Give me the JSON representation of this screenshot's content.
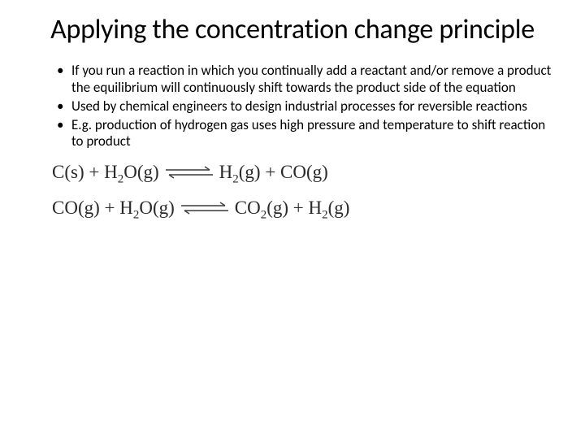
{
  "title": "Applying the concentration change principle",
  "title_fontsize": 34,
  "title_color": "#000000",
  "bullets": [
    "If you run a reaction in which you continually add a reactant and/or remove a product the equilibrium will continuously shift towards the product side of the equation",
    "Used by chemical engineers to design industrial processes for reversible reactions",
    "E.g. production of hydrogen gas uses high pressure and temperature to shift reaction to product"
  ],
  "bullet_fontsize": 17,
  "bullet_color": "#000000",
  "equations": [
    {
      "left": [
        {
          "txt": "C(s)"
        },
        {
          "txt": " + "
        },
        {
          "txt": "H",
          "sub": "2"
        },
        {
          "txt": "O(g)"
        }
      ],
      "right": [
        {
          "txt": "H",
          "sub": "2"
        },
        {
          "txt": "(g)"
        },
        {
          "txt": " + "
        },
        {
          "txt": "CO(g)"
        }
      ]
    },
    {
      "left": [
        {
          "txt": "CO(g)"
        },
        {
          "txt": " + "
        },
        {
          "txt": "H",
          "sub": "2"
        },
        {
          "txt": "O(g)"
        }
      ],
      "right": [
        {
          "txt": "CO",
          "sub": "2"
        },
        {
          "txt": "(g)"
        },
        {
          "txt": " + "
        },
        {
          "txt": "H",
          "sub": "2"
        },
        {
          "txt": "(g)"
        }
      ]
    }
  ],
  "equation_fontsize": 23,
  "equation_font": "Times New Roman",
  "equation_color": "#2a2a2a",
  "arrow_stroke": "#3a3a3a",
  "background_color": "#ffffff",
  "slide_width": 720,
  "slide_height": 540
}
